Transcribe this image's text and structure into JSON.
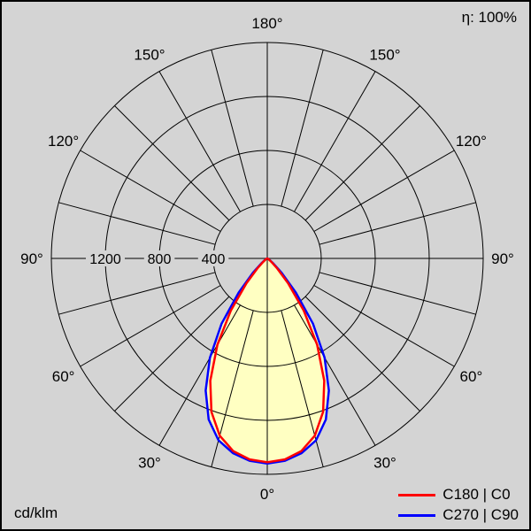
{
  "labels": {
    "efficiency": "η: 100%",
    "unit": "cd/klm"
  },
  "legend": {
    "entries": [
      {
        "label": "C180 | C0",
        "color": "#ff0000"
      },
      {
        "label": "C270 | C90",
        "color": "#0000ff"
      }
    ]
  },
  "chart_data": {
    "type": "polar",
    "unit": "cd/klm",
    "efficiency": "η: 100%",
    "max_radius_value": 1600,
    "rings": [
      400,
      800,
      1200,
      1600
    ],
    "ring_labels": [
      {
        "value": 1200,
        "text": "1200"
      },
      {
        "value": 800,
        "text": "800"
      },
      {
        "value": 400,
        "text": "400"
      }
    ],
    "angle_labels": [
      {
        "gamma": 0,
        "text": "0°"
      },
      {
        "gamma": 30,
        "text": "30°"
      },
      {
        "gamma": 60,
        "text": "60°"
      },
      {
        "gamma": 90,
        "text": "90°"
      },
      {
        "gamma": 120,
        "text": "120°"
      },
      {
        "gamma": 150,
        "text": "150°"
      },
      {
        "gamma": 180,
        "text": "180°"
      }
    ],
    "spoke_step_deg": 15,
    "fill_color": "#ffffc2",
    "grid_color": "#000000",
    "background_color": "#d4d4d4",
    "series": [
      {
        "name": "C180 | C0",
        "color": "#ff0000",
        "gamma_deg": [
          0,
          5,
          10,
          15,
          20,
          25,
          30,
          35,
          40,
          45,
          50,
          55,
          60,
          65,
          70,
          75,
          80,
          85,
          90
        ],
        "values_cd_per_klm": [
          1510,
          1495,
          1450,
          1360,
          1210,
          1000,
          740,
          470,
          240,
          100,
          40,
          18,
          8,
          4,
          2,
          1,
          0,
          0,
          0
        ]
      },
      {
        "name": "C270 | C90",
        "color": "#0000ff",
        "gamma_deg": [
          0,
          5,
          10,
          15,
          20,
          25,
          30,
          35,
          40,
          45,
          50,
          55,
          60,
          65,
          70,
          75,
          80,
          85,
          90
        ],
        "values_cd_per_klm": [
          1520,
          1505,
          1465,
          1395,
          1270,
          1080,
          850,
          590,
          330,
          150,
          60,
          25,
          10,
          5,
          2,
          1,
          0,
          0,
          0
        ]
      }
    ]
  }
}
